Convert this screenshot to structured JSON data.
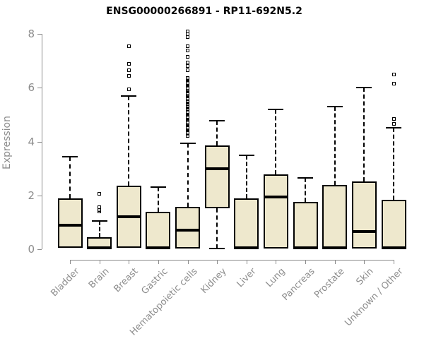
{
  "title": "ENSG00000266891 - RP11-692N5.2",
  "colors": {
    "box_fill": "#EEE8CD",
    "box_border": "#000000",
    "median": "#000000",
    "axis": "#8c8c8c",
    "tick_text": "#8c8c8c",
    "title_text": "#000000",
    "background": "#ffffff"
  },
  "chart_data": {
    "type": "boxplot",
    "title": "ENSG00000266891 - RP11-692N5.2",
    "xlabel": "",
    "ylabel": "Expression",
    "ylim": [
      0,
      8.2
    ],
    "yticks": [
      0,
      2,
      4,
      6,
      8
    ],
    "grid": false,
    "legend": "none",
    "whisker_style": "dashed",
    "categories": [
      "Bladder",
      "Brain",
      "Breast",
      "Gastric",
      "Hematopoietic cells",
      "Kidney",
      "Liver",
      "Lung",
      "Pancreas",
      "Prostate",
      "Skin",
      "Unknown / Other"
    ],
    "series": [
      {
        "label": "Bladder",
        "whisker_low": 0.05,
        "q1": 0.05,
        "median": 0.9,
        "q3": 1.9,
        "whisker_high": 3.45,
        "outliers": []
      },
      {
        "label": "Brain",
        "whisker_low": 0.0,
        "q1": 0.0,
        "median": 0.05,
        "q3": 0.45,
        "whisker_high": 1.05,
        "outliers": [
          1.4,
          1.45,
          1.55,
          2.05
        ]
      },
      {
        "label": "Breast",
        "whisker_low": 0.0,
        "q1": 0.05,
        "median": 1.2,
        "q3": 2.35,
        "whisker_high": 5.7,
        "outliers": [
          5.95,
          6.45,
          6.65,
          6.9,
          7.55
        ]
      },
      {
        "label": "Gastric",
        "whisker_low": 0.0,
        "q1": 0.02,
        "median": 0.05,
        "q3": 1.4,
        "whisker_high": 2.3,
        "outliers": []
      },
      {
        "label": "Hematopoietic cells",
        "whisker_low": 0.0,
        "q1": 0.02,
        "median": 0.7,
        "q3": 1.57,
        "whisker_high": 3.95,
        "outliers": [
          4.2,
          4.26,
          4.32,
          4.38,
          4.44,
          4.5,
          4.56,
          4.62,
          4.68,
          4.74,
          4.8,
          4.86,
          4.92,
          4.98,
          5.04,
          5.1,
          5.16,
          5.22,
          5.28,
          5.34,
          5.4,
          5.46,
          5.52,
          5.58,
          5.64,
          5.7,
          5.76,
          5.82,
          5.88,
          5.94,
          6.0,
          6.06,
          6.12,
          6.18,
          6.24,
          6.3,
          6.36,
          6.65,
          6.8,
          6.95,
          7.15,
          7.4,
          7.55,
          7.9,
          8.0,
          8.1
        ]
      },
      {
        "label": "Kidney",
        "whisker_low": 0.02,
        "q1": 1.52,
        "median": 3.0,
        "q3": 3.85,
        "whisker_high": 4.78,
        "outliers": []
      },
      {
        "label": "Liver",
        "whisker_low": 0.0,
        "q1": 0.02,
        "median": 0.05,
        "q3": 1.9,
        "whisker_high": 3.5,
        "outliers": []
      },
      {
        "label": "Lung",
        "whisker_low": 0.0,
        "q1": 0.02,
        "median": 1.95,
        "q3": 2.78,
        "whisker_high": 5.2,
        "outliers": []
      },
      {
        "label": "Pancreas",
        "whisker_low": 0.0,
        "q1": 0.02,
        "median": 0.05,
        "q3": 1.75,
        "whisker_high": 2.65,
        "outliers": []
      },
      {
        "label": "Prostate",
        "whisker_low": 0.0,
        "q1": 0.02,
        "median": 0.05,
        "q3": 2.4,
        "whisker_high": 5.3,
        "outliers": []
      },
      {
        "label": "Skin",
        "whisker_low": 0.0,
        "q1": 0.02,
        "median": 0.65,
        "q3": 2.52,
        "whisker_high": 6.0,
        "outliers": []
      },
      {
        "label": "Unknown / Other",
        "whisker_low": 0.0,
        "q1": 0.02,
        "median": 0.05,
        "q3": 1.85,
        "whisker_high": 4.52,
        "outliers": [
          4.65,
          4.85,
          6.15,
          6.5
        ]
      }
    ]
  }
}
